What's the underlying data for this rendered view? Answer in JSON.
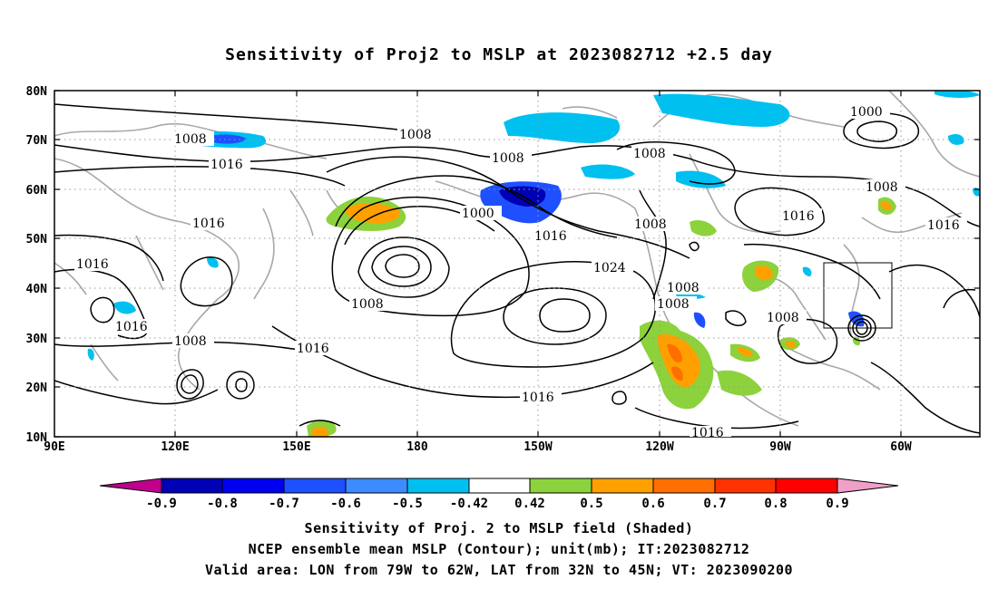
{
  "title": "Sensitivity of Proj2 to MSLP at 2023082712 +2.5 day",
  "lat_labels": [
    "80N",
    "70N",
    "60N",
    "50N",
    "40N",
    "30N",
    "20N",
    "10N"
  ],
  "lon_labels": [
    "90E",
    "120E",
    "150E",
    "180",
    "150W",
    "120W",
    "90W",
    "60W"
  ],
  "contour_labels": [
    "1008",
    "1008",
    "1016",
    "1008",
    "1000",
    "1016",
    "1008",
    "1016",
    "1016",
    "1016",
    "1000",
    "1016",
    "1008",
    "1016",
    "1024",
    "1008",
    "1008",
    "1008",
    "1016",
    "1016",
    "1016",
    "1008",
    "1008",
    "1008"
  ],
  "colorbar": {
    "ticks": [
      "-0.9",
      "-0.8",
      "-0.7",
      "-0.6",
      "-0.5",
      "-0.42",
      "0.42",
      "0.5",
      "0.6",
      "0.7",
      "0.8",
      "0.9"
    ],
    "colors": [
      "#c0008c",
      "#0000b4",
      "#0000f0",
      "#1e50ff",
      "#3c8cff",
      "#00c0f0",
      "#ffffff",
      "#8cd23c",
      "#ffa000",
      "#ff6e00",
      "#ff3200",
      "#ff0000",
      "#f0a0c8"
    ]
  },
  "captions": {
    "line1": "Sensitivity of Proj. 2 to MSLP field (Shaded)",
    "line2": "NCEP ensemble mean MSLP (Contour); unit(mb); IT:2023082712",
    "line3": "Valid area: LON from 79W to 62W, LAT from 32N to 45N; VT: 2023090200"
  }
}
